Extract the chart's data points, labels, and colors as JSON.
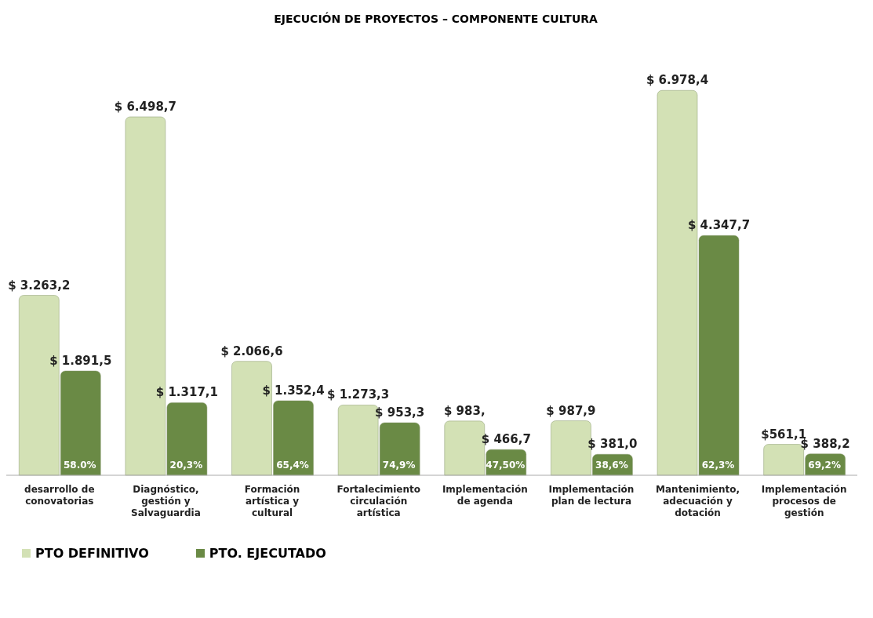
{
  "chart_data": {
    "type": "bar",
    "title": "EJECUCIÓN DE PROYECTOS – COMPONENTE CULTURA",
    "categories": [
      "desarrollo de conovatorias",
      "Diagnóstico, gestión y Salvaguardia",
      "Formación artística y cultural",
      "Fortalecimiento circulación artística",
      "Implementación de agenda",
      "Implementación plan de lectura",
      "Mantenimiento, adecuación y dotación",
      "Implementación procesos de gestión"
    ],
    "series": [
      {
        "name": "PTO DEFINITIVO",
        "color": "#d3e1b5",
        "values": [
          3263.2,
          6498.7,
          2066.6,
          1273.3,
          983,
          987.9,
          6978.4,
          561.1
        ],
        "value_labels": [
          "$ 3.263,2",
          "$ 6.498,7",
          "$ 2.066,6",
          "$ 1.273,3",
          "$ 983,",
          "$ 987,9",
          "$ 6.978,4",
          "$561,1"
        ]
      },
      {
        "name": "PTO. EJECUTADO",
        "color": "#6a8a45",
        "values": [
          1891.5,
          1317.1,
          1352.4,
          953.3,
          466.7,
          381.0,
          4347.7,
          388.2
        ],
        "value_labels": [
          "$ 1.891,5",
          "$ 1.317,1",
          "$ 1.352,4",
          "$ 953,3",
          "$ 466,7",
          "$ 381,0",
          "$ 4.347,7",
          "$ 388,2"
        ]
      }
    ],
    "annotations": [
      {
        "text": "58.0%",
        "x": "desarrollo de conovatorias",
        "y": 0
      },
      {
        "text": "20,3%",
        "x": "Diagnóstico, gestión y Salvaguardia",
        "y": 0
      },
      {
        "text": "65,4%",
        "x": "Formación artística y cultural",
        "y": 0
      },
      {
        "text": "74,9%",
        "x": "Fortalecimiento circulación artística",
        "y": 0
      },
      {
        "text": "47,50%",
        "x": "Implementación de agenda",
        "y": 0
      },
      {
        "text": "38,6%",
        "x": "Implementación plan de lectura",
        "y": 0
      },
      {
        "text": "62,3%",
        "x": "Mantenimiento, adecuación y dotación",
        "y": 0
      },
      {
        "text": "69,2%",
        "x": "Implementación procesos de gestión",
        "y": 0
      }
    ],
    "legend": "bottom left",
    "grid": false
  }
}
